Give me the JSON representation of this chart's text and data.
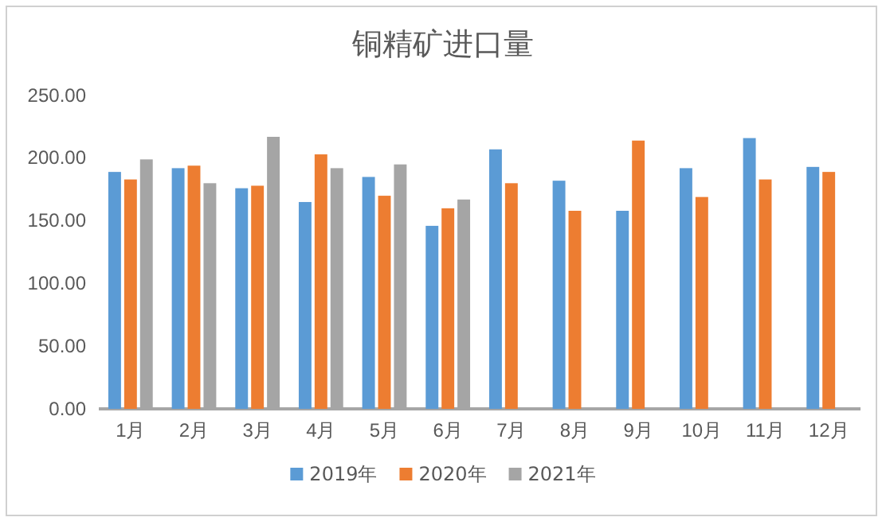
{
  "chart_data": {
    "type": "bar",
    "title": "铜精矿进口量",
    "categories": [
      "1月",
      "2月",
      "3月",
      "4月",
      "5月",
      "6月",
      "7月",
      "8月",
      "9月",
      "10月",
      "11月",
      "12月"
    ],
    "series": [
      {
        "name": "2019年",
        "color": "#5b9bd5",
        "values": [
          189,
          192,
          176,
          165,
          185,
          146,
          207,
          182,
          158,
          192,
          216,
          193
        ]
      },
      {
        "name": "2020年",
        "color": "#ed7d31",
        "values": [
          183,
          194,
          178,
          203,
          170,
          160,
          180,
          158,
          214,
          169,
          183,
          189
        ]
      },
      {
        "name": "2021年",
        "color": "#a5a5a5",
        "values": [
          199,
          180,
          217,
          192,
          195,
          167,
          null,
          null,
          null,
          null,
          null,
          null
        ]
      }
    ],
    "ylim": [
      0,
      250
    ],
    "yticks": [
      {
        "value": 0,
        "label": "0.00"
      },
      {
        "value": 50,
        "label": "50.00"
      },
      {
        "value": 100,
        "label": "100.00"
      },
      {
        "value": 150,
        "label": "150.00"
      },
      {
        "value": 200,
        "label": "200.00"
      },
      {
        "value": 250,
        "label": "250.00"
      }
    ],
    "grid": false,
    "legend": "bottom"
  }
}
